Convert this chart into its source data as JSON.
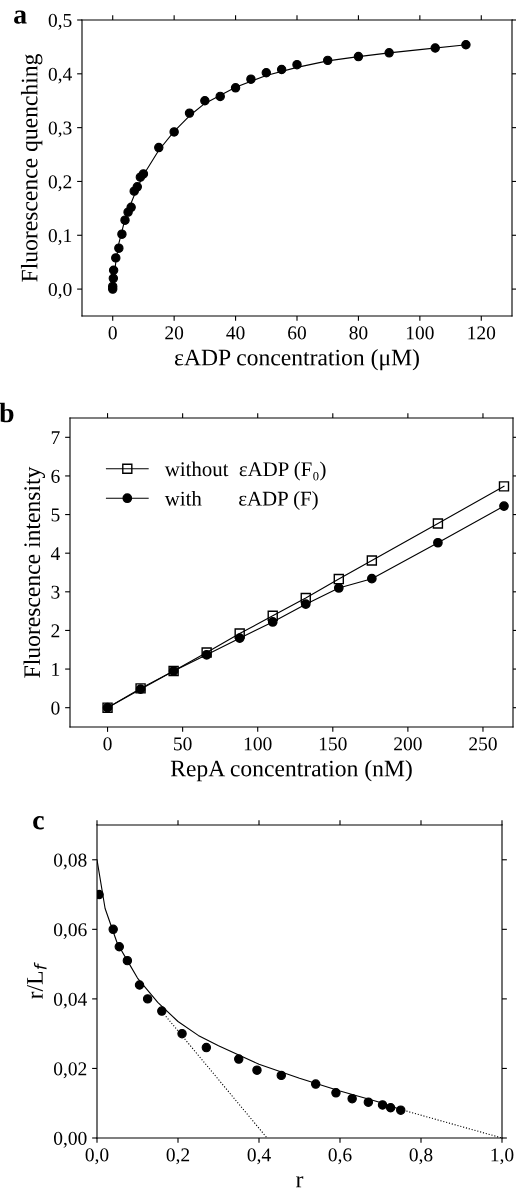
{
  "chart_data": [
    {
      "type": "scatter",
      "title": "a",
      "xlabel": "εADP concentration (μM)",
      "ylabel": "Fluorescence quenching",
      "xlim": [
        -10,
        130
      ],
      "xticks": [
        0,
        20,
        40,
        60,
        80,
        100,
        120
      ],
      "ylim": [
        -0.05,
        0.5
      ],
      "yticks": [
        {
          "value": 0.0,
          "label": "0,0"
        },
        {
          "value": 0.1,
          "label": "0,1"
        },
        {
          "value": 0.2,
          "label": "0,2"
        },
        {
          "value": 0.3,
          "label": "0,3"
        },
        {
          "value": 0.4,
          "label": "0,4"
        },
        {
          "value": 0.5,
          "label": "0,5"
        }
      ],
      "grid": false,
      "legend": false,
      "series": [
        {
          "type": "line",
          "color": "#000000",
          "marker": "none",
          "line_style": "solid",
          "x": [
            0,
            1,
            2,
            4,
            6,
            8,
            10,
            15,
            20,
            25,
            30,
            40,
            50,
            60,
            70,
            80,
            90,
            100,
            115
          ],
          "values": [
            0,
            0.05,
            0.085,
            0.13,
            0.16,
            0.188,
            0.212,
            0.258,
            0.293,
            0.322,
            0.345,
            0.375,
            0.397,
            0.412,
            0.424,
            0.432,
            0.439,
            0.445,
            0.454
          ]
        },
        {
          "type": "scatter",
          "color": "#000000",
          "marker": "circle",
          "x": [
            0,
            0,
            0.2,
            0.3,
            1,
            2,
            3,
            4,
            5,
            6,
            7,
            8,
            9,
            10,
            15,
            20,
            25,
            30,
            35,
            40,
            45,
            50,
            55,
            60,
            70,
            80,
            90,
            105,
            115
          ],
          "values": [
            0,
            0.005,
            0.02,
            0.035,
            0.058,
            0.076,
            0.102,
            0.128,
            0.143,
            0.152,
            0.182,
            0.19,
            0.208,
            0.214,
            0.263,
            0.292,
            0.327,
            0.35,
            0.358,
            0.374,
            0.39,
            0.402,
            0.408,
            0.417,
            0.425,
            0.432,
            0.439,
            0.448,
            0.454
          ]
        }
      ]
    },
    {
      "type": "line",
      "title": "b",
      "xlabel": "RepA concentration (nM)",
      "ylabel": "Fluorescence intensity",
      "xlim": [
        -25,
        270
      ],
      "xticks": [
        0,
        50,
        100,
        150,
        200,
        250
      ],
      "ylim": [
        -0.5,
        7.5
      ],
      "yticks": [
        0,
        1,
        2,
        3,
        4,
        5,
        6,
        7
      ],
      "grid": false,
      "legend": "top left",
      "x": [
        0,
        22,
        44,
        66,
        88,
        110,
        132,
        154,
        176,
        220,
        264
      ],
      "series": [
        {
          "name": "without  εADP (F₀)",
          "color": "#000000",
          "marker": "square",
          "values": [
            0,
            0.5,
            0.95,
            1.43,
            1.92,
            2.38,
            2.84,
            3.33,
            3.81,
            4.77,
            5.73
          ]
        },
        {
          "name": "with       εADP (F)",
          "color": "#000000",
          "marker": "circle",
          "values": [
            0,
            0.48,
            0.95,
            1.37,
            1.8,
            2.22,
            2.68,
            3.1,
            3.34,
            4.27,
            5.22
          ]
        }
      ]
    },
    {
      "type": "scatter",
      "title": "c",
      "xlabel": "r",
      "ylabel": "r/L$_{f}$",
      "xlim": [
        0,
        1.0
      ],
      "xticks": [
        {
          "value": 0.0,
          "label": "0,0"
        },
        {
          "value": 0.2,
          "label": "0,2"
        },
        {
          "value": 0.4,
          "label": "0,4"
        },
        {
          "value": 0.6,
          "label": "0,6"
        },
        {
          "value": 0.8,
          "label": "0,8"
        },
        {
          "value": 1.0,
          "label": "1,0"
        }
      ],
      "ylim": [
        0,
        0.09
      ],
      "yticks": [
        {
          "value": 0.0,
          "label": "0,00"
        },
        {
          "value": 0.02,
          "label": "0,02"
        },
        {
          "value": 0.04,
          "label": "0,04"
        },
        {
          "value": 0.06,
          "label": "0,06"
        },
        {
          "value": 0.08,
          "label": "0,08"
        }
      ],
      "grid": false,
      "legend": false,
      "series": [
        {
          "type": "line",
          "color": "#000000",
          "marker": "none",
          "line_style": "solid",
          "x": [
            0,
            0.02,
            0.05,
            0.08,
            0.1,
            0.15,
            0.2,
            0.25,
            0.3,
            0.4,
            0.5,
            0.6,
            0.7,
            0.75
          ],
          "values": [
            0.08,
            0.066,
            0.056,
            0.05,
            0.046,
            0.039,
            0.0335,
            0.0295,
            0.0265,
            0.0212,
            0.0172,
            0.0135,
            0.0102,
            0.0082
          ]
        },
        {
          "type": "line",
          "color": "#000000",
          "marker": "none",
          "line_style": "dotted",
          "x": [
            0.17,
            0.42
          ],
          "values": [
            0.035,
            0.0
          ]
        },
        {
          "type": "line",
          "color": "#000000",
          "marker": "none",
          "line_style": "dotted",
          "x": [
            0.75,
            1.0
          ],
          "values": [
            0.0082,
            0.0
          ]
        },
        {
          "type": "scatter",
          "color": "#000000",
          "marker": "circle",
          "x": [
            0.005,
            0.04,
            0.055,
            0.075,
            0.105,
            0.125,
            0.16,
            0.21,
            0.27,
            0.35,
            0.395,
            0.455,
            0.54,
            0.59,
            0.63,
            0.67,
            0.705,
            0.725,
            0.75
          ],
          "values": [
            0.07,
            0.06,
            0.055,
            0.051,
            0.044,
            0.04,
            0.0365,
            0.03,
            0.026,
            0.0227,
            0.0195,
            0.018,
            0.0155,
            0.013,
            0.0113,
            0.0103,
            0.0095,
            0.0087,
            0.008
          ]
        }
      ]
    }
  ]
}
